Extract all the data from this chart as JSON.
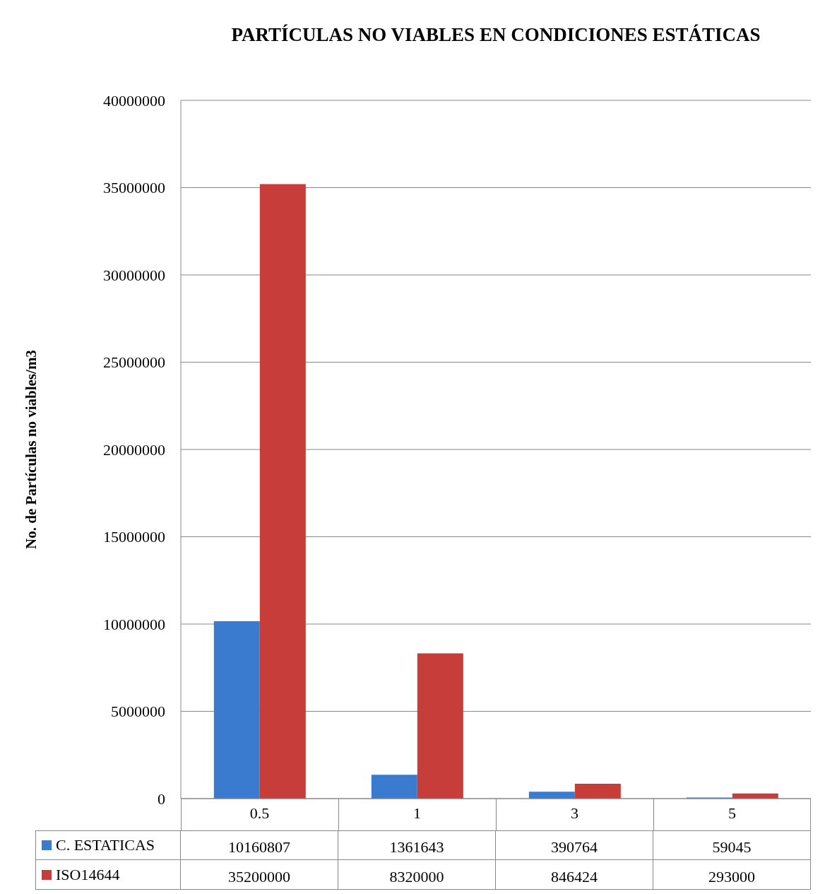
{
  "chart_data": {
    "type": "bar",
    "title": "PARTÍCULAS NO VIABLES EN CONDICIONES ESTÁTICAS",
    "ylabel": "No. de Partículas no viables/m3",
    "categories": [
      "0.5",
      "1",
      "3",
      "5"
    ],
    "series": [
      {
        "name": "C. ESTATICAS",
        "color": "#3a7bd0",
        "values": [
          10160807,
          1361643,
          390764,
          59045
        ]
      },
      {
        "name": "ISO14644",
        "color": "#c63d3a",
        "values": [
          35200000,
          8320000,
          846424,
          293000
        ]
      }
    ],
    "ylim": [
      0,
      40000000
    ],
    "yticks": [
      0,
      5000000,
      10000000,
      15000000,
      20000000,
      25000000,
      30000000,
      35000000,
      40000000
    ],
    "grid": "y",
    "legend": "bottom",
    "data_labels": true
  }
}
